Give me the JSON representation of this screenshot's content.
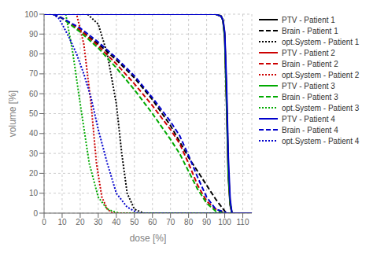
{
  "chart_data": {
    "type": "line",
    "title": "",
    "xlabel": "dose [%]",
    "ylabel": "volume [%]",
    "xlim": [
      0,
      115
    ],
    "ylim": [
      0,
      100
    ],
    "xticks": [
      0,
      10,
      20,
      30,
      40,
      50,
      60,
      70,
      80,
      90,
      100,
      110
    ],
    "yticks": [
      0,
      10,
      20,
      30,
      40,
      50,
      60,
      70,
      80,
      90,
      100
    ],
    "grid": true,
    "legend": "upper right",
    "series": [
      {
        "name": "PTV - Patient 1",
        "color": "#000000",
        "line_style": "solid",
        "x": [
          0,
          90,
          95,
          98,
          99,
          100,
          101,
          102,
          103,
          104,
          115
        ],
        "values": [
          100,
          100,
          100,
          99,
          97,
          88,
          55,
          18,
          4,
          0,
          0
        ]
      },
      {
        "name": "Brain - Patient 1",
        "color": "#000000",
        "line_style": "dashed",
        "x": [
          5,
          10,
          20,
          30,
          40,
          50,
          60,
          70,
          80,
          90,
          95,
          100,
          101,
          115
        ],
        "values": [
          100,
          98,
          92,
          85,
          77,
          68,
          57,
          44,
          28,
          14,
          7,
          1,
          0,
          0
        ]
      },
      {
        "name": "opt.System - Patient 1",
        "color": "#000000",
        "line_style": "dotted",
        "x": [
          5,
          24,
          30,
          35,
          40,
          43,
          46,
          50,
          55,
          115
        ],
        "values": [
          100,
          100,
          95,
          80,
          55,
          30,
          10,
          2,
          0,
          0
        ]
      },
      {
        "name": "PTV - Patient 2",
        "color": "#cc0000",
        "line_style": "solid",
        "x": [
          0,
          90,
          95,
          98,
          99,
          100,
          101,
          102,
          103,
          104,
          115
        ],
        "values": [
          100,
          100,
          100,
          99,
          97,
          90,
          60,
          22,
          5,
          0,
          0
        ]
      },
      {
        "name": "Brain - Patient 2",
        "color": "#cc0000",
        "line_style": "dashed",
        "x": [
          5,
          10,
          20,
          30,
          40,
          50,
          60,
          70,
          75,
          80,
          85,
          90,
          95,
          100,
          115
        ],
        "values": [
          100,
          98,
          92,
          84,
          75,
          65,
          54,
          42,
          35,
          25,
          14,
          6,
          2,
          0,
          0
        ]
      },
      {
        "name": "opt.System - Patient 2",
        "color": "#cc0000",
        "line_style": "dotted",
        "x": [
          5,
          18,
          22,
          26,
          29,
          32,
          35,
          38,
          115
        ],
        "values": [
          100,
          100,
          85,
          55,
          25,
          8,
          2,
          0,
          0
        ]
      },
      {
        "name": "PTV - Patient 3",
        "color": "#00aa00",
        "line_style": "solid",
        "x": [
          0,
          90,
          95,
          98,
          99,
          100,
          101,
          102,
          103,
          104,
          115
        ],
        "values": [
          100,
          100,
          100,
          99,
          97,
          89,
          58,
          20,
          5,
          0,
          0
        ]
      },
      {
        "name": "Brain - Patient 3",
        "color": "#00aa00",
        "line_style": "dashed",
        "x": [
          5,
          10,
          20,
          30,
          40,
          50,
          60,
          70,
          75,
          80,
          85,
          90,
          95,
          100,
          115
        ],
        "values": [
          100,
          98,
          91,
          83,
          73,
          62,
          50,
          37,
          30,
          21,
          12,
          5,
          1,
          0,
          0
        ]
      },
      {
        "name": "opt.System - Patient 3",
        "color": "#00aa00",
        "line_style": "dotted",
        "x": [
          5,
          12,
          16,
          20,
          25,
          30,
          35,
          40,
          42,
          115
        ],
        "values": [
          100,
          100,
          80,
          55,
          25,
          8,
          2,
          0.3,
          0,
          0
        ]
      },
      {
        "name": "PTV - Patient 4",
        "color": "#0000cc",
        "line_style": "solid",
        "x": [
          0,
          90,
          95,
          98,
          99,
          100,
          101,
          102,
          103,
          104,
          115
        ],
        "values": [
          100,
          100,
          100,
          99,
          97,
          91,
          65,
          28,
          7,
          0,
          0
        ]
      },
      {
        "name": "Brain - Patient 4",
        "color": "#0000cc",
        "line_style": "dashed",
        "x": [
          5,
          10,
          20,
          30,
          40,
          50,
          60,
          70,
          75,
          80,
          85,
          90,
          95,
          100,
          101,
          115
        ],
        "values": [
          100,
          98,
          93,
          86,
          78,
          69,
          58,
          46,
          39,
          29,
          18,
          8,
          2,
          0.5,
          0,
          0
        ]
      },
      {
        "name": "opt.System - Patient 4",
        "color": "#0000cc",
        "line_style": "dotted",
        "x": [
          5,
          8,
          10,
          14,
          18,
          22,
          26,
          30,
          35,
          40,
          46,
          52,
          115
        ],
        "values": [
          100,
          98,
          95,
          88,
          80,
          70,
          58,
          42,
          25,
          10,
          3,
          0,
          0
        ]
      }
    ]
  }
}
